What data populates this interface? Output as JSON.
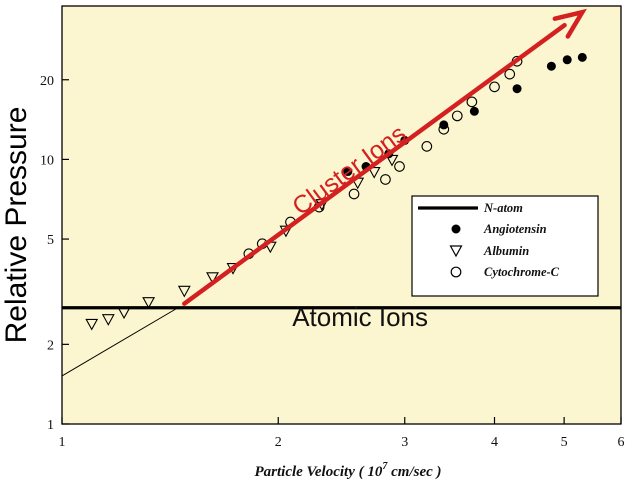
{
  "chart_data": {
    "type": "scatter",
    "xlabel": "Particle Velocity ( 10 7 cm/sec )",
    "xlabel_parts": {
      "prefix": "Particle Velocity ( 10",
      "exponent": "7",
      "suffix": " cm/sec )"
    },
    "ylabel": "Relative Pressure",
    "x_scale": "log",
    "y_scale": "log",
    "xlim": [
      1,
      6
    ],
    "ylim": [
      1,
      38
    ],
    "x_ticks": [
      1,
      2,
      3,
      4,
      5,
      6
    ],
    "y_ticks": [
      1,
      2,
      5,
      10,
      20
    ],
    "background": "#fbf6d0",
    "series": [
      {
        "name": "N-atom",
        "marker": "line",
        "color": "#000000",
        "points": [
          [
            1,
            2.75
          ],
          [
            6,
            2.75
          ]
        ]
      },
      {
        "name": "Angiotensin",
        "marker": "filled-circle",
        "color": "#000000",
        "points": [
          [
            2.5,
            9.0
          ],
          [
            2.65,
            9.4
          ],
          [
            2.85,
            10.5
          ],
          [
            3.0,
            11.8
          ],
          [
            3.4,
            13.5
          ],
          [
            3.75,
            15.2
          ],
          [
            4.3,
            18.5
          ],
          [
            4.8,
            22.5
          ],
          [
            5.05,
            23.8
          ],
          [
            5.3,
            24.3
          ]
        ]
      },
      {
        "name": "Albumin",
        "marker": "triangle-down",
        "color": "#000000",
        "points": [
          [
            1.1,
            2.4
          ],
          [
            1.16,
            2.5
          ],
          [
            1.22,
            2.65
          ],
          [
            1.32,
            2.9
          ],
          [
            1.48,
            3.2
          ],
          [
            1.62,
            3.6
          ],
          [
            1.73,
            3.9
          ],
          [
            1.95,
            4.7
          ],
          [
            2.05,
            5.4
          ],
          [
            2.3,
            6.8
          ],
          [
            2.58,
            8.2
          ],
          [
            2.72,
            9.0
          ],
          [
            2.88,
            10.0
          ]
        ]
      },
      {
        "name": "Cytochrome-C",
        "marker": "open-circle",
        "color": "#000000",
        "points": [
          [
            1.82,
            4.4
          ],
          [
            1.9,
            4.8
          ],
          [
            2.08,
            5.8
          ],
          [
            2.28,
            6.6
          ],
          [
            2.55,
            7.4
          ],
          [
            2.82,
            8.4
          ],
          [
            2.95,
            9.4
          ],
          [
            3.22,
            11.2
          ],
          [
            3.4,
            13.0
          ],
          [
            3.55,
            14.6
          ],
          [
            3.72,
            16.5
          ],
          [
            4.0,
            18.8
          ],
          [
            4.2,
            21.0
          ],
          [
            4.3,
            23.5
          ]
        ]
      }
    ],
    "trend_line": {
      "color": "#000000",
      "points": [
        [
          1,
          1.52
        ],
        [
          1.45,
          2.75
        ]
      ]
    },
    "arrow": {
      "color": "#d42020",
      "from": [
        1.48,
        2.85
      ],
      "to": [
        5.3,
        36
      ]
    },
    "annotations": [
      {
        "text": "Cluster Ions",
        "color": "#d42020",
        "x": 2.55,
        "y": 8.6
      },
      {
        "text": "Atomic Ions",
        "color": "#000000",
        "x": 2.6,
        "y": 2.35
      }
    ],
    "legend": {
      "position": "right",
      "entries": [
        "N-atom",
        "Angiotensin",
        "Albumin",
        "Cytochrome-C"
      ]
    }
  }
}
